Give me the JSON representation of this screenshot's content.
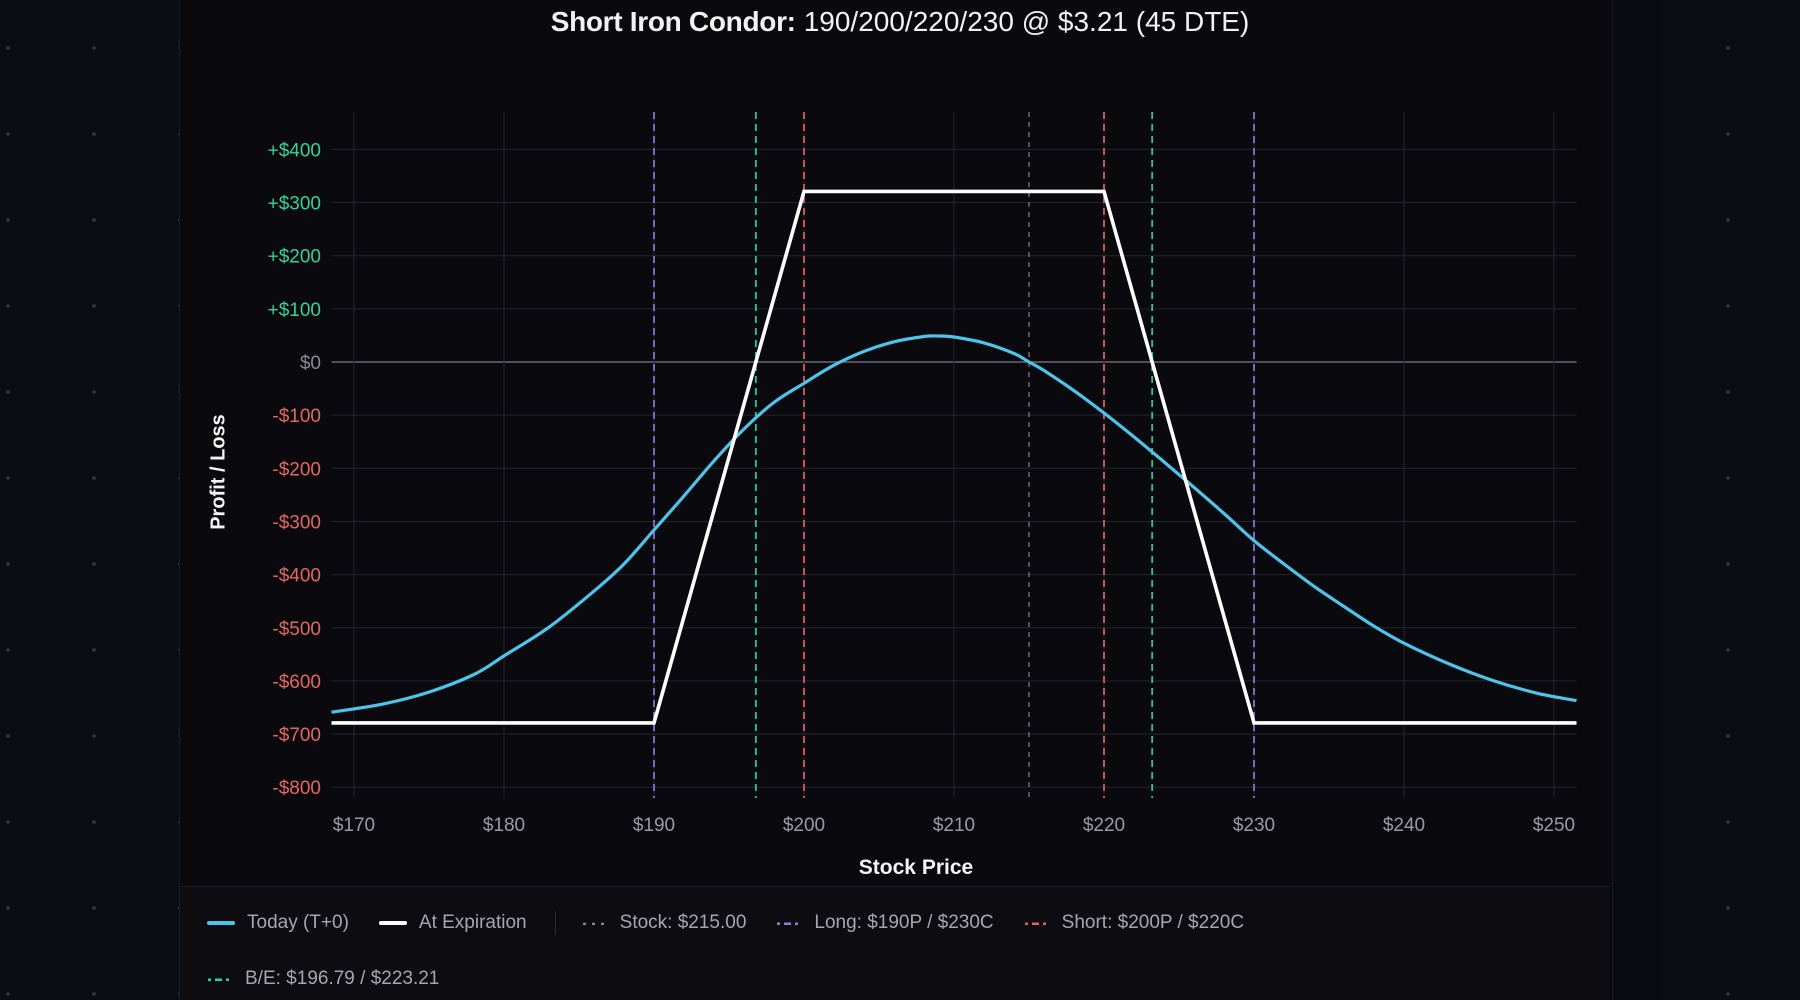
{
  "title": {
    "bold": "Short Iron Condor:",
    "rest": "190/200/220/230 @ $3.21 (45 DTE)"
  },
  "axes": {
    "ylabel": "Profit / Loss",
    "xlabel": "Stock Price"
  },
  "colors": {
    "today": "#4fc3ea",
    "expiration": "#ffffff",
    "stock": "#8a8a92",
    "long": "#8b7be0",
    "short": "#e5605c",
    "breakeven": "#2fd19a",
    "positive_tick": "#35d39a",
    "negative_tick": "#e6675f",
    "zero_tick": "#8a8a92",
    "x_tick": "#9a9aa2",
    "grid": "#23252d",
    "zero_line": "#6a6a72"
  },
  "legend": {
    "today": "Today (T+0)",
    "expiration": "At Expiration",
    "stock": "Stock: $215.00",
    "long": "Long: $190P / $230C",
    "short": "Short: $200P / $220C",
    "breakeven": "B/E: $196.79 / $223.21"
  },
  "chart_data": {
    "type": "line",
    "title": "Short Iron Condor: 190/200/220/230 @ $3.21 (45 DTE)",
    "xlabel": "Stock Price",
    "ylabel": "Profit / Loss",
    "xlim": [
      168.5,
      251.5
    ],
    "ylim": [
      -800,
      400
    ],
    "x_ticks": [
      170,
      180,
      190,
      200,
      210,
      220,
      230,
      240,
      250
    ],
    "x_tick_labels": [
      "$170",
      "$180",
      "$190",
      "$200",
      "$210",
      "$220",
      "$230",
      "$240",
      "$250"
    ],
    "y_ticks": [
      400,
      300,
      200,
      100,
      0,
      -100,
      -200,
      -300,
      -400,
      -500,
      -600,
      -700,
      -800
    ],
    "y_tick_labels": [
      "+$400",
      "+$300",
      "+$200",
      "+$100",
      "$0",
      "-$100",
      "-$200",
      "-$300",
      "-$400",
      "-$500",
      "-$600",
      "-$700",
      "-$800"
    ],
    "grid": true,
    "legend_position": "bottom",
    "series": [
      {
        "name": "Today (T+0)",
        "x": [
          168.5,
          172,
          175,
          178,
          180,
          183,
          186,
          188,
          190,
          192,
          194,
          196,
          198,
          200,
          202,
          204,
          206,
          208,
          209,
          210,
          212,
          214,
          215,
          216,
          218,
          220,
          222,
          224,
          226,
          228,
          230,
          232,
          234,
          236,
          238,
          240,
          243,
          246,
          249,
          251.5
        ],
        "y": [
          -659,
          -643,
          -621,
          -588,
          -553,
          -499,
          -431,
          -380,
          -316,
          -252,
          -186,
          -126,
          -76,
          -40,
          -6,
          20,
          38,
          48,
          49,
          47,
          36,
          16,
          0,
          -16,
          -54,
          -96,
          -141,
          -188,
          -236,
          -285,
          -336,
          -380,
          -422,
          -460,
          -497,
          -529,
          -568,
          -600,
          -624,
          -637
        ]
      },
      {
        "name": "At Expiration",
        "x": [
          168.5,
          190,
          200,
          220,
          230,
          251.5
        ],
        "y": [
          -679,
          -679,
          321,
          321,
          -679,
          -679
        ]
      }
    ],
    "reference_lines": [
      {
        "name": "Stock",
        "x": 215.0,
        "style": "dotted"
      },
      {
        "name": "Long Put",
        "x": 190,
        "style": "dashed"
      },
      {
        "name": "Long Call",
        "x": 230,
        "style": "dashed"
      },
      {
        "name": "Short Put",
        "x": 200,
        "style": "dashed"
      },
      {
        "name": "Short Call",
        "x": 220,
        "style": "dashed"
      },
      {
        "name": "Break-even Low",
        "x": 196.79,
        "style": "dashed"
      },
      {
        "name": "Break-even High",
        "x": 223.21,
        "style": "dashed"
      }
    ],
    "max_profit": 321,
    "max_loss": -679,
    "breakevens": [
      196.79,
      223.21
    ],
    "stock_price": 215.0
  }
}
